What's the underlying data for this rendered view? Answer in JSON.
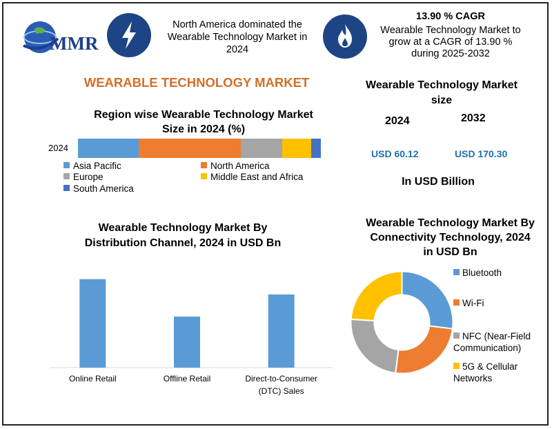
{
  "header": {
    "logo_text": "MMR",
    "headline": "North America dominated the Wearable Technology Market in 2024",
    "cagr_title": "13.90 % CAGR",
    "cagr_text": "Wearable Technology Market to grow at a CAGR of 13.90 % during 2025-2032",
    "icons": [
      "lightning-icon",
      "flame-icon",
      "globe-icon"
    ]
  },
  "main_title": "WEARABLE TECHNOLOGY MARKET",
  "market_size": {
    "title": "Wearable Technology Market size",
    "years": [
      "2024",
      "2032"
    ],
    "values": [
      "USD 60.12",
      "USD 170.30"
    ],
    "unit": "In USD Billion"
  },
  "colors": {
    "asia_pacific": "#5b9bd5",
    "north_america": "#ed7d31",
    "europe": "#a5a5a5",
    "mea": "#ffc000",
    "south_america": "#4472c4",
    "icon_bg": "#1d4585",
    "title_orange": "#d0702a",
    "value_blue": "#2070ad"
  },
  "chart_data": [
    {
      "type": "bar",
      "orientation": "horizontal-stacked",
      "title": "Region wise Wearable Technology Market Size in 2024 (%)",
      "categories": [
        "2024"
      ],
      "series": [
        {
          "name": "Asia Pacific",
          "values": [
            25
          ]
        },
        {
          "name": "North America",
          "values": [
            42
          ]
        },
        {
          "name": "Europe",
          "values": [
            17
          ]
        },
        {
          "name": "Middle East and Africa",
          "values": [
            12
          ]
        },
        {
          "name": "South America",
          "values": [
            4
          ]
        }
      ],
      "legend_position": "bottom"
    },
    {
      "type": "bar",
      "title": "Wearable Technology Market By Distribution Channel, 2024 in USD Bn",
      "categories": [
        "Online Retail",
        "Offline Retail",
        "Direct-to-Consumer (DTC) Sales"
      ],
      "values": [
        26,
        15,
        21.5
      ],
      "ylim": [
        0,
        30
      ],
      "grid": false
    },
    {
      "type": "pie",
      "variant": "donut",
      "title": "Wearable Technology Market By Connectivity Technology, 2024 in USD Bn",
      "categories": [
        "Bluetooth",
        "Wi-Fi",
        "NFC (Near-Field Communication)",
        "5G & Cellular Networks"
      ],
      "values": [
        27,
        25,
        24,
        24
      ],
      "colors": [
        "#5b9bd5",
        "#ed7d31",
        "#a5a5a5",
        "#ffc000"
      ],
      "legend_position": "right"
    }
  ]
}
